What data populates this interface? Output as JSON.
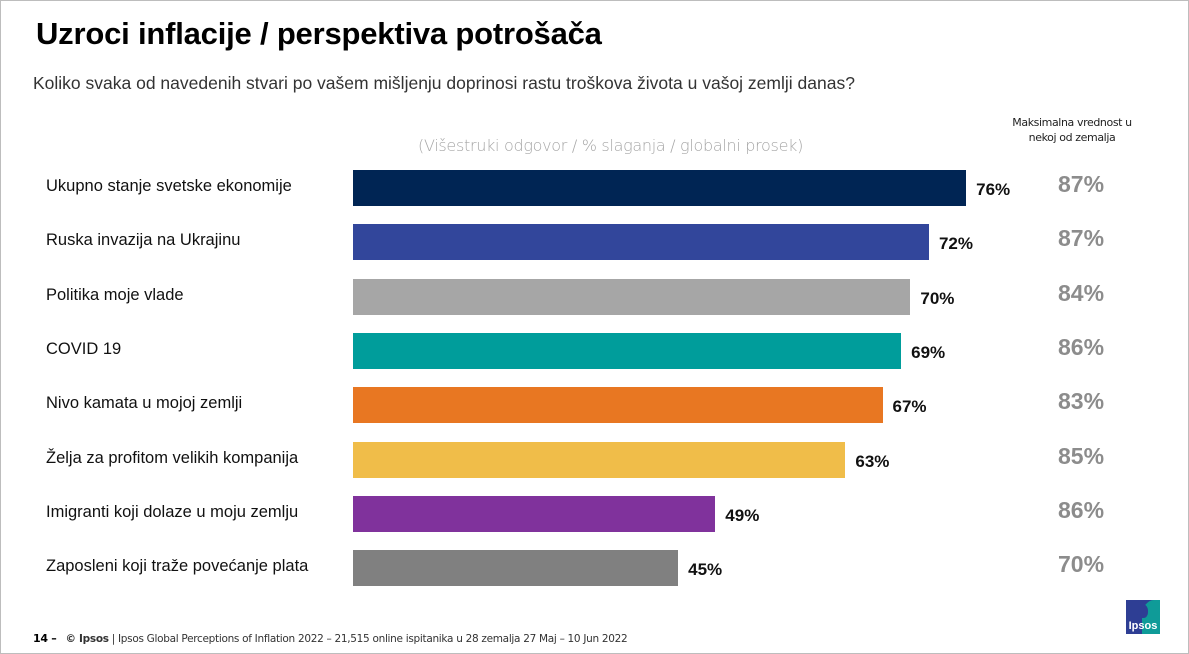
{
  "title": "Uzroci inflacije / perspektiva potrošača",
  "subtitle": "Koliko svaka od navedenih stvari po vašem mišljenju doprinosi rastu troškova života u vašoj zemlji danas?",
  "note": "(Višestruki odgovor / % slaganja / globalni prosek)",
  "max_header": "Maksimalna vrednost u nekoj od zemalja",
  "footer": {
    "page": "14 –",
    "brand": "© Ipsos",
    "text": "| Ipsos Global Perceptions of Inflation 2022 – 21,515 online ispitanika u 28 zemalja 27 Maj – 10 Jun 2022"
  },
  "logo": {
    "text": "Ipsos",
    "colors": {
      "blue": "#2e3e94",
      "teal": "#0f9b98"
    }
  },
  "chart_data": {
    "type": "bar",
    "orientation": "horizontal",
    "title": "Uzroci inflacije / perspektiva potrošača",
    "xlabel": "",
    "ylabel": "",
    "xlim": [
      10,
      100
    ],
    "grid": false,
    "legend": "none",
    "categories": [
      "Ukupno stanje svetske ekonomije",
      "Ruska invazija na Ukrajinu",
      "Politika moje vlade",
      "COVID 19",
      "Nivo kamata u mojoj zemlji",
      "Želja za profitom velikih kompanija",
      "Imigranti koji dolaze u moju zemlju",
      "Zaposleni koji traže povećanje plata"
    ],
    "series": [
      {
        "name": "Globalni prosek",
        "values": [
          76,
          72,
          70,
          69,
          67,
          63,
          49,
          45
        ]
      },
      {
        "name": "Maksimalna vrednost u nekoj od zemalja",
        "values": [
          87,
          87,
          84,
          86,
          83,
          85,
          86,
          70
        ]
      }
    ],
    "value_labels": [
      "76%",
      "72%",
      "70%",
      "69%",
      "67%",
      "63%",
      "49%",
      "45%"
    ],
    "max_labels": [
      "87%",
      "87%",
      "84%",
      "86%",
      "83%",
      "85%",
      "86%",
      "70%"
    ],
    "colors": [
      "#002554",
      "#32469b",
      "#a6a6a6",
      "#009d9b",
      "#e87722",
      "#f0bd49",
      "#80329c",
      "#808080"
    ]
  }
}
